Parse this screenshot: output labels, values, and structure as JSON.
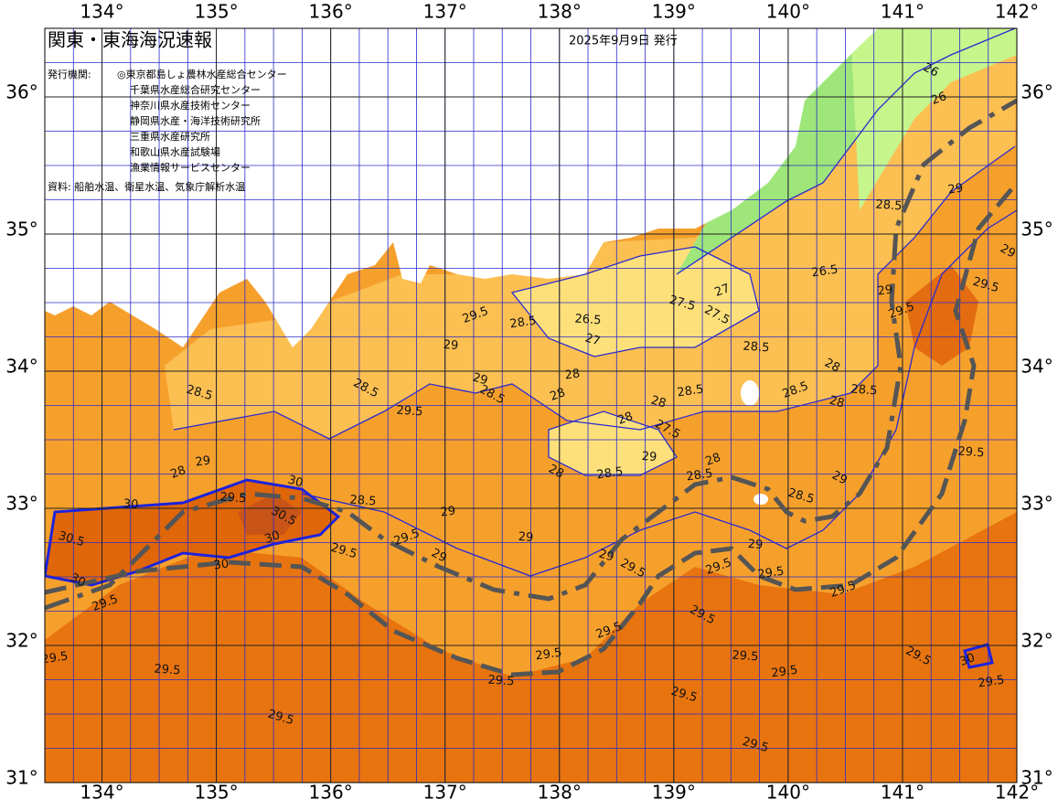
{
  "header": {
    "title": "関東・東海海況速報",
    "date": "2025年9月9日 発行"
  },
  "info": {
    "agencies_label": "発行機関:",
    "agencies": [
      "◎東京都島しょ農林水産総合センター",
      "千葉県水産総合研究センター",
      "神奈川県水産技術センター",
      "静岡県水産・海洋技術研究所",
      "三重県水産研究所",
      "和歌山県水産試験場",
      "漁業情報サービスセンター"
    ],
    "source": "資料: 船舶水温、衛星水温、気象庁解析水温"
  },
  "map": {
    "xlim": [
      133.5,
      142
    ],
    "ylim": [
      31,
      36.5
    ],
    "lon_ticks": [
      {
        "value": 134,
        "label": "134°"
      },
      {
        "value": 135,
        "label": "135°"
      },
      {
        "value": 136,
        "label": "136°"
      },
      {
        "value": 137,
        "label": "137°"
      },
      {
        "value": 138,
        "label": "138°"
      },
      {
        "value": 139,
        "label": "139°"
      },
      {
        "value": 140,
        "label": "140°"
      },
      {
        "value": 141,
        "label": "141°"
      },
      {
        "value": 142,
        "label": "142°"
      }
    ],
    "lat_ticks": [
      {
        "value": 31,
        "label": "31°"
      },
      {
        "value": 32,
        "label": "32°"
      },
      {
        "value": 33,
        "label": "33°"
      },
      {
        "value": 34,
        "label": "34°"
      },
      {
        "value": 35,
        "label": "35°"
      },
      {
        "value": 36,
        "label": "36°"
      }
    ],
    "contour_labels": [
      29.5,
      28.5,
      29,
      29,
      28.5,
      28,
      28,
      29.5,
      28.5,
      28.5,
      28,
      29,
      29.5,
      30,
      30.5,
      30,
      30,
      30,
      30.5,
      30,
      29.5,
      29.5,
      29.5,
      29.5,
      29,
      29.5,
      29,
      28.5,
      29.5,
      28,
      28,
      28.5,
      29,
      29,
      29.5,
      29.5,
      29.5,
      29.5,
      29.5,
      29.5,
      29.5,
      29.5,
      29,
      28.5,
      29,
      29.5,
      29.5,
      29.5,
      29.5,
      29.5,
      30,
      29.5,
      29.5,
      29.5,
      29,
      29.5,
      29,
      28.5,
      28,
      28,
      28.5,
      28.5,
      28.5,
      27.5,
      27.5,
      27,
      26.5,
      26.5,
      27,
      26,
      26,
      29,
      28.5,
      28,
      27.5,
      28,
      28.5,
      29
    ]
  }
}
